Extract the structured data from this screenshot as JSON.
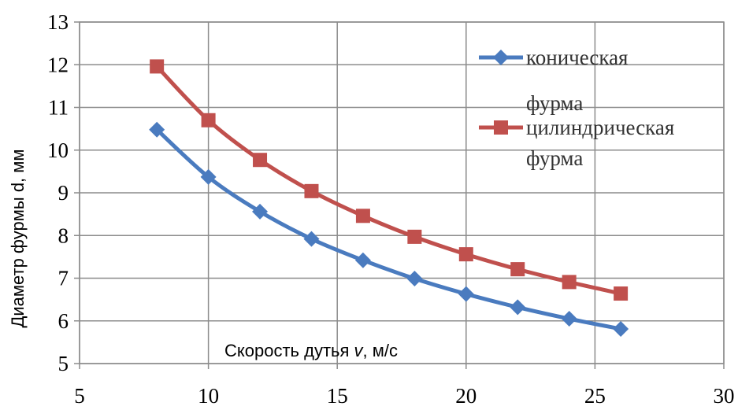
{
  "chart_data": {
    "type": "line",
    "xlabel_main": "Скорость дутья ",
    "xlabel_var": "v",
    "xlabel_unit": ", м/с",
    "ylabel": "Диаметр фурмы d, мм",
    "xlim": [
      5,
      30
    ],
    "ylim": [
      5,
      13
    ],
    "x_ticks": [
      "5",
      "10",
      "15",
      "20",
      "25",
      "30"
    ],
    "y_ticks": [
      "5",
      "6",
      "7",
      "8",
      "9",
      "10",
      "11",
      "12",
      "13"
    ],
    "grid": true,
    "legend_position": "top-right",
    "series": [
      {
        "name_line1": "коническая",
        "name_line2": "фурма",
        "color": "#4a7bbf",
        "marker": "diamond",
        "x": [
          8,
          10,
          12,
          14,
          16,
          18,
          20,
          22,
          24,
          26
        ],
        "y": [
          10.48,
          9.37,
          8.56,
          7.92,
          7.42,
          6.99,
          6.63,
          6.32,
          6.05,
          5.81
        ]
      },
      {
        "name_line1": "цилиндрическая",
        "name_line2": "фурма",
        "color": "#c0504d",
        "marker": "square",
        "x": [
          8,
          10,
          12,
          14,
          16,
          18,
          20,
          22,
          24,
          26
        ],
        "y": [
          11.96,
          10.7,
          9.77,
          9.04,
          8.46,
          7.97,
          7.56,
          7.21,
          6.91,
          6.64
        ]
      }
    ]
  }
}
